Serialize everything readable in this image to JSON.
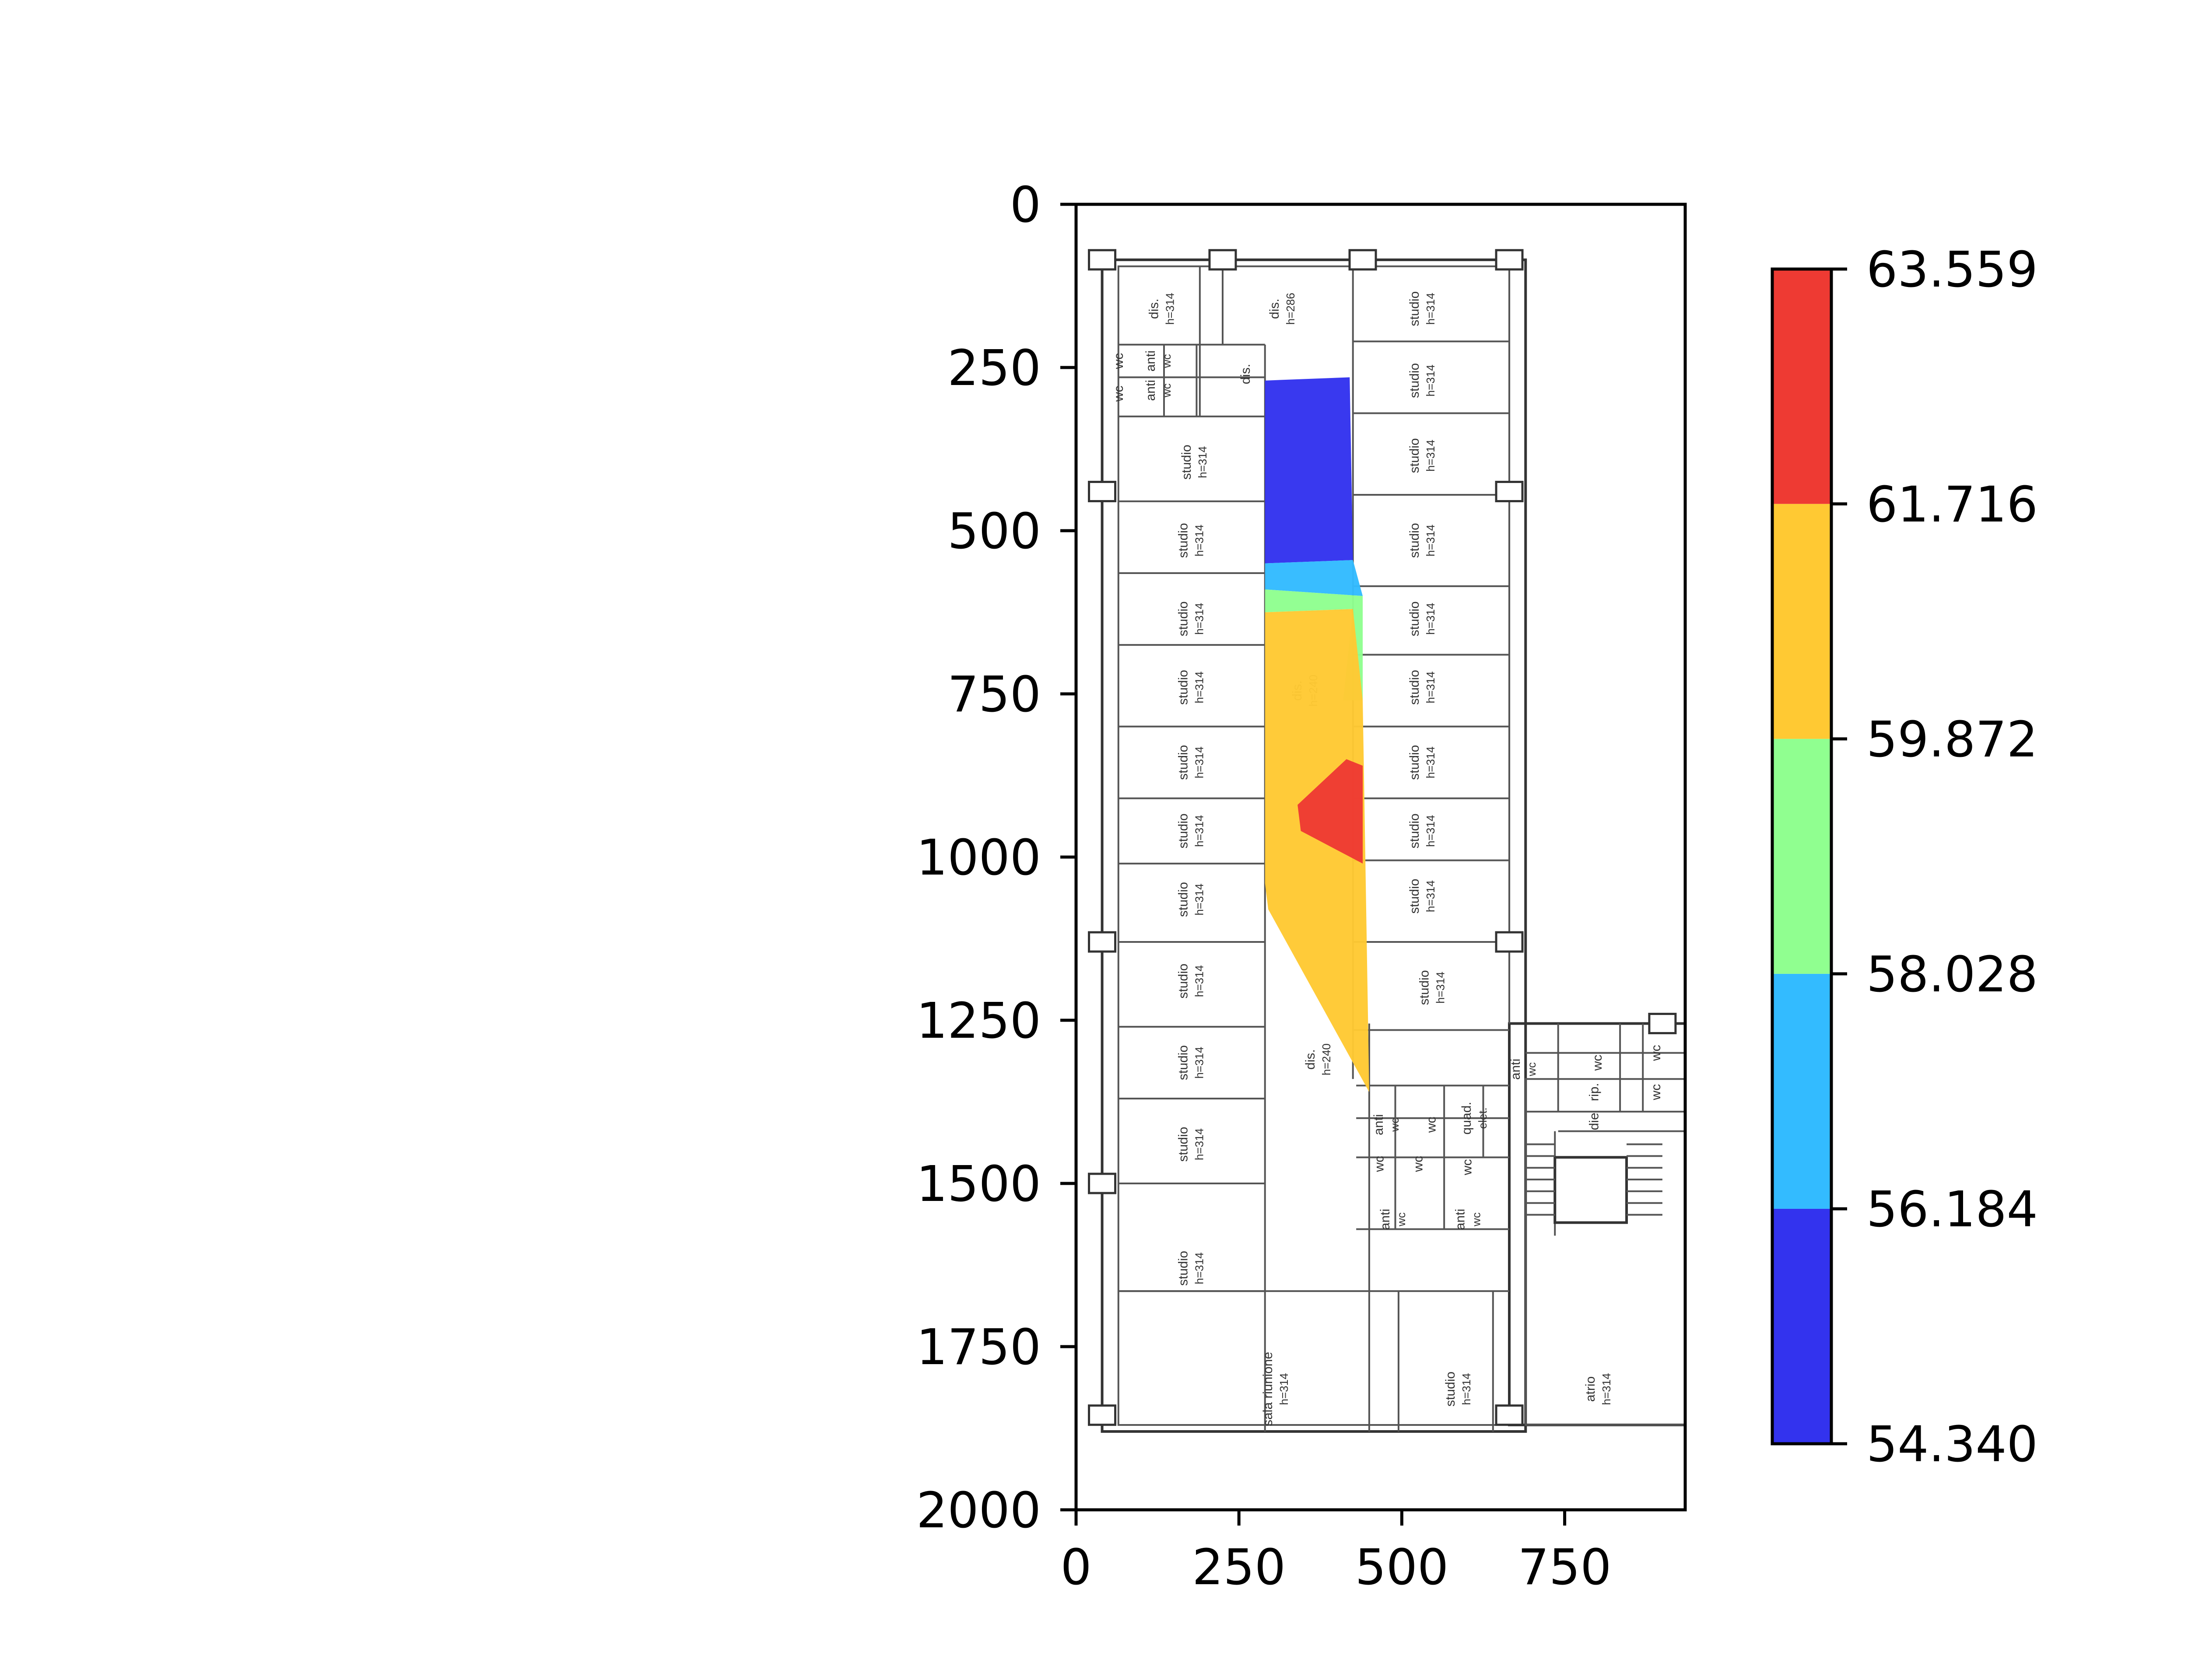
{
  "chart_data": {
    "type": "heatmap",
    "title": "",
    "xlabel": "",
    "ylabel": "",
    "xlim": [
      0,
      935
    ],
    "ylim": [
      2000,
      0
    ],
    "y_inverted": true,
    "x_ticks": [
      "0",
      "250",
      "500",
      "750"
    ],
    "x_tick_values": [
      0,
      250,
      500,
      750
    ],
    "y_ticks": [
      "0",
      "250",
      "500",
      "750",
      "1000",
      "1250",
      "1500",
      "1750",
      "2000"
    ],
    "y_tick_values": [
      0,
      250,
      500,
      750,
      1000,
      1250,
      1500,
      1750,
      2000
    ],
    "background": "floor plan",
    "colorbar": {
      "ticks": [
        "54.340",
        "56.184",
        "58.028",
        "59.872",
        "61.716",
        "63.559"
      ],
      "levels": [
        54.34,
        56.184,
        58.028,
        59.872,
        61.716,
        63.559
      ],
      "colors": [
        "#3333ee",
        "#33bbff",
        "#90ff90",
        "#ffc933",
        "#ee3a33"
      ]
    },
    "regions": [
      {
        "level": 0,
        "points": [
          [
            290,
            270
          ],
          [
            420,
            265
          ],
          [
            425,
            545
          ],
          [
            290,
            550
          ]
        ]
      },
      {
        "level": 1,
        "points": [
          [
            290,
            550
          ],
          [
            425,
            545
          ],
          [
            440,
            600
          ],
          [
            290,
            590
          ]
        ]
      },
      {
        "level": 2,
        "points": [
          [
            290,
            590
          ],
          [
            440,
            600
          ],
          [
            440,
            760
          ],
          [
            410,
            760
          ],
          [
            425,
            620
          ],
          [
            290,
            625
          ]
        ]
      },
      {
        "level": 3,
        "points": [
          [
            290,
            625
          ],
          [
            425,
            620
          ],
          [
            440,
            760
          ],
          [
            450,
            1360
          ],
          [
            295,
            1080
          ],
          [
            290,
            1040
          ]
        ]
      },
      {
        "level": 4,
        "points": [
          [
            340,
            920
          ],
          [
            415,
            850
          ],
          [
            440,
            860
          ],
          [
            440,
            1010
          ],
          [
            345,
            960
          ]
        ]
      }
    ],
    "floor_plan_labels": [
      {
        "text": "dis.",
        "sub": "h=314",
        "x": 130,
        "y": 160
      },
      {
        "text": "dis.",
        "sub": "h=286",
        "x": 315,
        "y": 160
      },
      {
        "text": "studio",
        "sub": "h=314",
        "x": 530,
        "y": 160
      },
      {
        "text": "wc",
        "x": 65,
        "y": 240
      },
      {
        "text": "anti",
        "sub": "wc",
        "x": 125,
        "y": 240
      },
      {
        "text": "dis.",
        "x": 260,
        "y": 260
      },
      {
        "text": "studio",
        "sub": "h=314",
        "x": 530,
        "y": 270
      },
      {
        "text": "wc",
        "x": 65,
        "y": 290
      },
      {
        "text": "anti",
        "sub": "wc",
        "x": 125,
        "y": 285
      },
      {
        "text": "studio",
        "sub": "h=314",
        "x": 180,
        "y": 395
      },
      {
        "text": "studio",
        "sub": "h=314",
        "x": 530,
        "y": 385
      },
      {
        "text": "studio",
        "sub": "h=314",
        "x": 175,
        "y": 515
      },
      {
        "text": "studio",
        "sub": "h=314",
        "x": 530,
        "y": 515
      },
      {
        "text": "studio",
        "sub": "h=314",
        "x": 175,
        "y": 635
      },
      {
        "text": "studio",
        "sub": "h=314",
        "x": 530,
        "y": 635
      },
      {
        "text": "dis.",
        "sub": "h=240",
        "x": 350,
        "y": 745
      },
      {
        "text": "studio",
        "sub": "h=314",
        "x": 175,
        "y": 740
      },
      {
        "text": "studio",
        "sub": "h=314",
        "x": 530,
        "y": 740
      },
      {
        "text": "studio",
        "sub": "h=314",
        "x": 175,
        "y": 855
      },
      {
        "text": "studio",
        "sub": "h=314",
        "x": 530,
        "y": 855
      },
      {
        "text": "studio",
        "sub": "h=314",
        "x": 175,
        "y": 960
      },
      {
        "text": "studio",
        "sub": "h=314",
        "x": 530,
        "y": 960
      },
      {
        "text": "studio",
        "sub": "h=314",
        "x": 175,
        "y": 1065
      },
      {
        "text": "studio",
        "sub": "h=314",
        "x": 530,
        "y": 1060
      },
      {
        "text": "studio",
        "sub": "h=314",
        "x": 175,
        "y": 1190
      },
      {
        "text": "studio",
        "sub": "h=314",
        "x": 545,
        "y": 1200
      },
      {
        "text": "dis.",
        "sub": "h=240",
        "x": 370,
        "y": 1310
      },
      {
        "text": "anti",
        "sub": "wc",
        "x": 685,
        "y": 1325
      },
      {
        "text": "wc",
        "x": 800,
        "y": 1315
      },
      {
        "text": "wc",
        "x": 890,
        "y": 1300
      },
      {
        "text": "studio",
        "sub": "h=314",
        "x": 175,
        "y": 1315
      },
      {
        "text": "anti",
        "sub": "wc",
        "x": 475,
        "y": 1410
      },
      {
        "text": "wc",
        "x": 545,
        "y": 1410
      },
      {
        "text": "quad.",
        "sub": "elet.",
        "x": 610,
        "y": 1400
      },
      {
        "text": "rip.",
        "x": 795,
        "y": 1360
      },
      {
        "text": "wc",
        "x": 890,
        "y": 1360
      },
      {
        "text": "die",
        "x": 795,
        "y": 1405
      },
      {
        "text": "wc",
        "x": 465,
        "y": 1470
      },
      {
        "text": "wc",
        "x": 525,
        "y": 1470
      },
      {
        "text": "wc",
        "x": 600,
        "y": 1475
      },
      {
        "text": "studio",
        "sub": "h=314",
        "x": 175,
        "y": 1440
      },
      {
        "text": "anti",
        "sub": "wc",
        "x": 485,
        "y": 1555
      },
      {
        "text": "anti",
        "sub": "wc",
        "x": 600,
        "y": 1555
      },
      {
        "text": "studio",
        "sub": "h=314",
        "x": 175,
        "y": 1630
      },
      {
        "text": "sala riunione",
        "sub": "h=314",
        "x": 305,
        "y": 1815
      },
      {
        "text": "studio",
        "sub": "h=314",
        "x": 585,
        "y": 1815
      },
      {
        "text": "atrio",
        "sub": "h=314",
        "x": 800,
        "y": 1815
      }
    ]
  }
}
